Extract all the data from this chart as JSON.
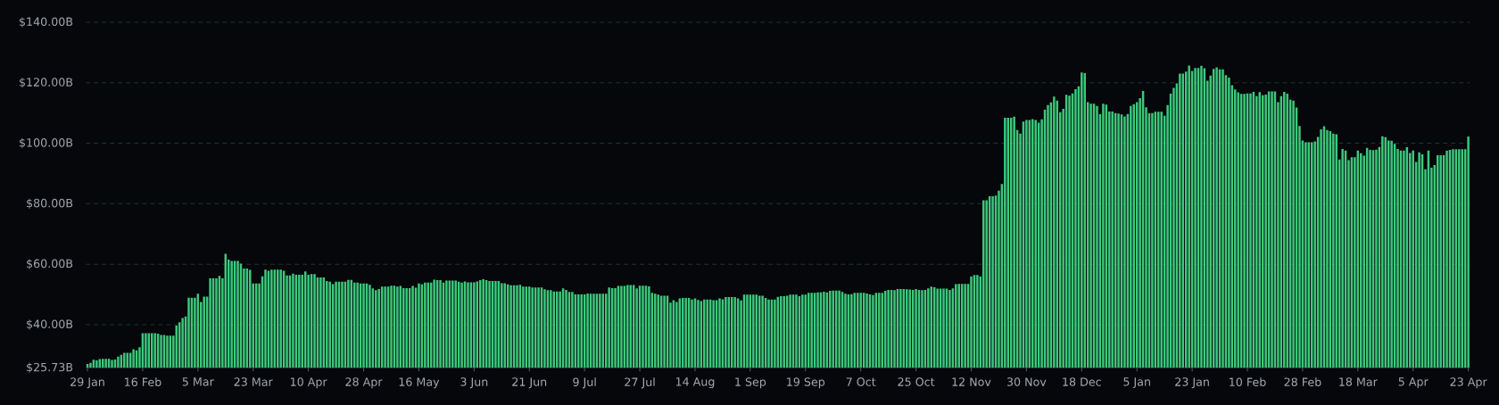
{
  "chart_data": {
    "type": "bar",
    "categories": [
      "29 Jan",
      null,
      null,
      null,
      null,
      null,
      null,
      null,
      null,
      null,
      null,
      null,
      null,
      null,
      null,
      null,
      null,
      null,
      "16 Feb",
      null,
      null,
      null,
      null,
      null,
      null,
      null,
      null,
      null,
      null,
      null,
      null,
      null,
      null,
      null,
      null,
      null,
      "5 Mar",
      null,
      null,
      null,
      null,
      null,
      null,
      null,
      null,
      null,
      null,
      null,
      null,
      null,
      null,
      null,
      null,
      null,
      "23 Mar",
      null,
      null,
      null,
      null,
      null,
      null,
      null,
      null,
      null,
      null,
      null,
      null,
      null,
      null,
      null,
      null,
      null,
      "10 Apr",
      null,
      null,
      null,
      null,
      null,
      null,
      null,
      null,
      null,
      null,
      null,
      null,
      null,
      null,
      null,
      null,
      null,
      "28 Apr",
      null,
      null,
      null,
      null,
      null,
      null,
      null,
      null,
      null,
      null,
      null,
      null,
      null,
      null,
      null,
      null,
      null,
      "16 May",
      null,
      null,
      null,
      null,
      null,
      null,
      null,
      null,
      null,
      null,
      null,
      null,
      null,
      null,
      null,
      null,
      null,
      "3 Jun",
      null,
      null,
      null,
      null,
      null,
      null,
      null,
      null,
      null,
      null,
      null,
      null,
      null,
      null,
      null,
      null,
      null,
      "21 Jun",
      null,
      null,
      null,
      null,
      null,
      null,
      null,
      null,
      null,
      null,
      null,
      null,
      null,
      null,
      null,
      null,
      null,
      "9 Jul",
      null,
      null,
      null,
      null,
      null,
      null,
      null,
      null,
      null,
      null,
      null,
      null,
      null,
      null,
      null,
      null,
      null,
      "27 Jul",
      null,
      null,
      null,
      null,
      null,
      null,
      null,
      null,
      null,
      null,
      null,
      null,
      null,
      null,
      null,
      null,
      null,
      "14 Aug",
      null,
      null,
      null,
      null,
      null,
      null,
      null,
      null,
      null,
      null,
      null,
      null,
      null,
      null,
      null,
      null,
      null,
      "1 Sep",
      null,
      null,
      null,
      null,
      null,
      null,
      null,
      null,
      null,
      null,
      null,
      null,
      null,
      null,
      null,
      null,
      null,
      "19 Sep",
      null,
      null,
      null,
      null,
      null,
      null,
      null,
      null,
      null,
      null,
      null,
      null,
      null,
      null,
      null,
      null,
      null,
      "7 Oct",
      null,
      null,
      null,
      null,
      null,
      null,
      null,
      null,
      null,
      null,
      null,
      null,
      null,
      null,
      null,
      null,
      null,
      "25 Oct",
      null,
      null,
      null,
      null,
      null,
      null,
      null,
      null,
      null,
      null,
      null,
      null,
      null,
      null,
      null,
      null,
      null,
      "12 Nov",
      null,
      null,
      null,
      null,
      null,
      null,
      null,
      null,
      null,
      null,
      null,
      null,
      null,
      null,
      null,
      null,
      null,
      "30 Nov",
      null,
      null,
      null,
      null,
      null,
      null,
      null,
      null,
      null,
      null,
      null,
      null,
      null,
      null,
      null,
      null,
      null,
      "18 Dec",
      null,
      null,
      null,
      null,
      null,
      null,
      null,
      null,
      null,
      null,
      null,
      null,
      null,
      null,
      null,
      null,
      null,
      "5 Jan",
      null,
      null,
      null,
      null,
      null,
      null,
      null,
      null,
      null,
      null,
      null,
      null,
      null,
      null,
      null,
      null,
      null,
      "23 Jan",
      null,
      null,
      null,
      null,
      null,
      null,
      null,
      null,
      null,
      null,
      null,
      null,
      null,
      null,
      null,
      null,
      null,
      "10 Feb",
      null,
      null,
      null,
      null,
      null,
      null,
      null,
      null,
      null,
      null,
      null,
      null,
      null,
      null,
      null,
      null,
      null,
      "28 Feb",
      null,
      null,
      null,
      null,
      null,
      null,
      null,
      null,
      null,
      null,
      null,
      null,
      null,
      null,
      null,
      null,
      null,
      "18 Mar",
      null,
      null,
      null,
      null,
      null,
      null,
      null,
      null,
      null,
      null,
      null,
      null,
      null,
      null,
      null,
      null,
      null,
      "5 Apr",
      null,
      null,
      null,
      null,
      null,
      null,
      null,
      null,
      null,
      null,
      null,
      null,
      null,
      null,
      null,
      null,
      null,
      "23 Apr"
    ],
    "values": [
      27.0,
      27.4,
      28.4,
      28.2,
      28.6,
      28.7,
      28.7,
      28.7,
      28.3,
      28.5,
      29.4,
      30.0,
      30.7,
      30.7,
      30.7,
      31.9,
      31.5,
      32.5,
      37.2,
      37.2,
      37.2,
      37.2,
      37.2,
      37.0,
      36.6,
      36.6,
      36.4,
      36.4,
      36.4,
      39.7,
      40.8,
      42.2,
      42.7,
      48.9,
      48.9,
      48.9,
      50.2,
      47.5,
      49.3,
      49.3,
      55.3,
      55.3,
      55.3,
      56.1,
      55.3,
      63.4,
      61.5,
      61.1,
      61.1,
      61.1,
      60.2,
      58.6,
      58.6,
      58.1,
      53.6,
      53.6,
      53.6,
      56.0,
      58.2,
      57.8,
      58.2,
      58.2,
      58.2,
      58.2,
      57.8,
      56.3,
      56.3,
      56.9,
      56.5,
      56.5,
      56.5,
      57.6,
      56.5,
      56.7,
      56.7,
      55.6,
      55.6,
      55.6,
      54.4,
      54.2,
      53.4,
      54.2,
      54.2,
      54.2,
      54.2,
      54.8,
      54.8,
      53.9,
      53.9,
      53.6,
      53.6,
      53.6,
      53.2,
      52.0,
      51.4,
      51.8,
      52.6,
      52.6,
      52.6,
      52.9,
      52.9,
      52.6,
      52.8,
      52.1,
      52.1,
      52.1,
      52.8,
      52.2,
      53.6,
      53.3,
      53.9,
      53.9,
      53.9,
      54.9,
      54.7,
      54.7,
      53.9,
      54.6,
      54.6,
      54.6,
      54.6,
      54.2,
      53.9,
      54.3,
      54.0,
      54.0,
      54.0,
      54.3,
      54.7,
      55.0,
      54.7,
      54.4,
      54.4,
      54.4,
      54.4,
      53.7,
      53.7,
      53.3,
      53.0,
      53.0,
      53.0,
      53.2,
      52.6,
      52.6,
      52.6,
      52.3,
      52.3,
      52.3,
      52.3,
      51.7,
      51.4,
      51.4,
      51.0,
      51.0,
      51.0,
      52.0,
      51.5,
      50.8,
      50.8,
      50.0,
      50.0,
      50.0,
      50.0,
      50.3,
      50.2,
      50.2,
      50.2,
      50.2,
      50.2,
      50.2,
      52.3,
      52.1,
      52.1,
      52.8,
      52.8,
      52.8,
      53.1,
      53.1,
      53.1,
      52.0,
      52.9,
      52.9,
      52.9,
      52.7,
      50.5,
      50.2,
      49.9,
      49.6,
      49.6,
      49.6,
      47.3,
      48.1,
      47.5,
      48.7,
      48.8,
      48.8,
      48.8,
      48.3,
      48.7,
      48.2,
      47.8,
      48.3,
      48.3,
      48.3,
      48.1,
      48.1,
      48.7,
      48.4,
      49.1,
      49.1,
      49.1,
      49.1,
      48.7,
      48.0,
      49.9,
      49.9,
      49.9,
      49.9,
      49.9,
      49.6,
      49.6,
      48.8,
      48.3,
      48.3,
      48.3,
      49.2,
      49.4,
      49.4,
      49.6,
      49.9,
      49.9,
      49.9,
      49.4,
      49.9,
      49.9,
      50.5,
      50.5,
      50.5,
      50.7,
      50.7,
      50.9,
      50.7,
      51.2,
      51.3,
      51.3,
      51.3,
      50.8,
      50.2,
      50.0,
      50.1,
      50.5,
      50.5,
      50.5,
      50.5,
      50.3,
      50.0,
      49.8,
      50.5,
      50.5,
      50.5,
      51.2,
      51.5,
      51.5,
      51.4,
      51.8,
      51.8,
      51.8,
      51.7,
      51.6,
      51.5,
      51.8,
      51.5,
      51.4,
      51.5,
      52.0,
      52.6,
      52.4,
      51.9,
      51.9,
      51.9,
      51.9,
      51.5,
      52.0,
      53.4,
      53.5,
      53.5,
      53.5,
      53.5,
      55.9,
      56.4,
      56.4,
      55.9,
      81.1,
      81.1,
      82.5,
      82.5,
      82.7,
      84.3,
      86.5,
      108.4,
      108.4,
      108.4,
      108.8,
      104.4,
      103.2,
      107.2,
      107.7,
      107.7,
      108.0,
      107.7,
      106.8,
      107.9,
      111.1,
      112.6,
      113.5,
      115.4,
      114.1,
      110.3,
      111.4,
      116.0,
      115.7,
      116.5,
      117.9,
      118.8,
      123.4,
      123.2,
      113.6,
      113.1,
      113.1,
      112.3,
      109.6,
      113.1,
      112.8,
      110.5,
      110.5,
      110.0,
      109.8,
      109.5,
      108.9,
      109.7,
      112.3,
      112.9,
      113.6,
      114.9,
      117.3,
      111.9,
      109.9,
      110.0,
      110.4,
      110.4,
      110.4,
      109.1,
      112.6,
      116.4,
      118.3,
      119.8,
      123.0,
      123.0,
      123.7,
      125.7,
      123.9,
      124.9,
      124.9,
      125.6,
      124.8,
      120.7,
      122.4,
      124.6,
      125.1,
      124.4,
      124.4,
      122.5,
      121.7,
      119.2,
      117.8,
      116.8,
      116.3,
      116.3,
      116.5,
      116.5,
      117.0,
      115.6,
      116.9,
      115.9,
      116.1,
      117.1,
      117.1,
      117.1,
      113.6,
      115.6,
      117.0,
      116.4,
      114.4,
      114.1,
      111.8,
      105.7,
      100.9,
      100.3,
      100.3,
      100.3,
      100.6,
      102.1,
      104.6,
      105.6,
      104.4,
      104.0,
      103.2,
      103.0,
      94.6,
      98.1,
      97.6,
      94.4,
      95.4,
      95.4,
      97.6,
      96.7,
      95.9,
      98.5,
      97.8,
      97.7,
      97.9,
      98.8,
      102.3,
      102.0,
      100.9,
      100.8,
      99.8,
      98.1,
      97.6,
      97.6,
      98.7,
      96.8,
      97.6,
      93.8,
      97.0,
      96.3,
      91.4,
      97.6,
      91.9,
      92.8,
      96.0,
      96.0,
      96.0,
      97.5,
      97.8,
      98.0,
      98.0,
      98.0,
      98.0,
      98.0,
      102.2
    ],
    "color": "#3cc97c",
    "ylim": [
      25.73,
      140
    ],
    "yticks": [
      {
        "value": 25.73,
        "label": "$25.73B"
      },
      {
        "value": 40,
        "label": "$40.00B"
      },
      {
        "value": 60,
        "label": "$60.00B"
      },
      {
        "value": 80,
        "label": "$80.00B"
      },
      {
        "value": 100,
        "label": "$100.00B"
      },
      {
        "value": 120,
        "label": "$120.00B"
      },
      {
        "value": 140,
        "label": "$140.00B"
      }
    ],
    "grid": "y"
  }
}
